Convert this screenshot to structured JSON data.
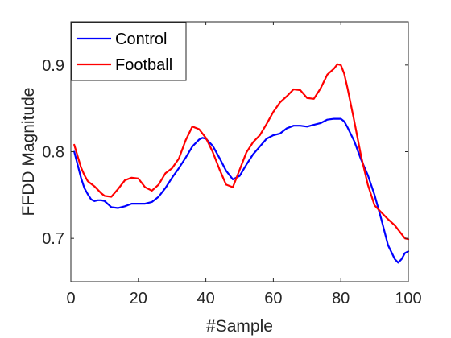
{
  "chart_data": {
    "type": "line",
    "xlabel": "#Sample",
    "ylabel": "FFDD Magnitude",
    "xlim": [
      0,
      100
    ],
    "ylim": [
      0.65,
      0.95
    ],
    "xticks": [
      0,
      20,
      40,
      60,
      80,
      100
    ],
    "xtick_labels": [
      "0",
      "20",
      "40",
      "60",
      "80",
      "100"
    ],
    "yticks": [
      0.7,
      0.8,
      0.9
    ],
    "ytick_labels": [
      "0.7",
      "0.8",
      "0.9"
    ],
    "grid": false,
    "legend_position": "top-left",
    "series": [
      {
        "name": "Control",
        "color": "#0000ff",
        "x": [
          1,
          2,
          3,
          4,
          5,
          6,
          7,
          8,
          9,
          10,
          12,
          14,
          16,
          18,
          20,
          22,
          24,
          26,
          28,
          30,
          32,
          34,
          36,
          38,
          39,
          40,
          42,
          44,
          46,
          48,
          50,
          52,
          54,
          56,
          58,
          60,
          62,
          64,
          66,
          68,
          70,
          72,
          74,
          76,
          78,
          80,
          81,
          82,
          84,
          86,
          88,
          90,
          92,
          94,
          96,
          97,
          98,
          99,
          100
        ],
        "y": [
          0.8,
          0.785,
          0.77,
          0.758,
          0.751,
          0.745,
          0.743,
          0.744,
          0.744,
          0.743,
          0.736,
          0.735,
          0.737,
          0.74,
          0.74,
          0.74,
          0.742,
          0.748,
          0.758,
          0.77,
          0.781,
          0.793,
          0.806,
          0.814,
          0.816,
          0.815,
          0.807,
          0.793,
          0.778,
          0.768,
          0.772,
          0.785,
          0.797,
          0.806,
          0.815,
          0.819,
          0.821,
          0.827,
          0.83,
          0.83,
          0.829,
          0.831,
          0.833,
          0.837,
          0.838,
          0.838,
          0.835,
          0.828,
          0.812,
          0.791,
          0.773,
          0.75,
          0.722,
          0.692,
          0.676,
          0.672,
          0.676,
          0.683,
          0.685
        ]
      },
      {
        "name": "Football",
        "color": "#ff0000",
        "x": [
          1,
          2,
          3,
          4,
          5,
          6,
          7,
          8,
          9,
          10,
          12,
          14,
          16,
          18,
          20,
          22,
          24,
          26,
          28,
          30,
          32,
          34,
          36,
          38,
          40,
          42,
          44,
          46,
          48,
          50,
          52,
          54,
          56,
          58,
          60,
          62,
          64,
          66,
          68,
          70,
          72,
          74,
          76,
          78,
          79,
          80,
          81,
          82,
          84,
          86,
          88,
          90,
          92,
          94,
          96,
          98,
          99,
          100
        ],
        "y": [
          0.808,
          0.795,
          0.782,
          0.773,
          0.766,
          0.763,
          0.76,
          0.756,
          0.752,
          0.749,
          0.748,
          0.757,
          0.767,
          0.77,
          0.769,
          0.759,
          0.755,
          0.762,
          0.775,
          0.781,
          0.792,
          0.813,
          0.829,
          0.826,
          0.816,
          0.8,
          0.78,
          0.762,
          0.759,
          0.779,
          0.799,
          0.811,
          0.819,
          0.832,
          0.846,
          0.857,
          0.864,
          0.872,
          0.871,
          0.862,
          0.861,
          0.873,
          0.889,
          0.896,
          0.901,
          0.9,
          0.89,
          0.873,
          0.835,
          0.795,
          0.762,
          0.738,
          0.73,
          0.722,
          0.715,
          0.705,
          0.7,
          0.699
        ]
      }
    ]
  }
}
